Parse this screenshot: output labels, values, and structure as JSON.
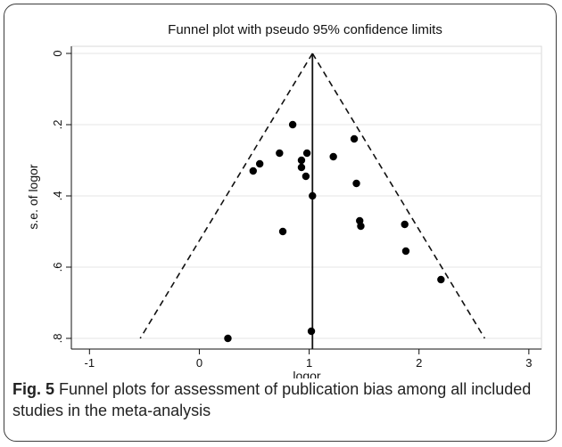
{
  "chart_data": {
    "type": "scatter",
    "title": "Funnel plot with pseudo 95% confidence limits",
    "xlabel": "logor",
    "ylabel": "s.e. of logor",
    "xlim": [
      -1.1,
      3.05
    ],
    "ylim": [
      0,
      0.8
    ],
    "y_reversed": true,
    "x_ticks": [
      "-1",
      "0",
      "1",
      "2",
      "3"
    ],
    "y_ticks": [
      "0",
      ".2",
      ".4",
      ".6",
      ".8"
    ],
    "grid": "horizontal",
    "pooled_estimate": 1.03,
    "series": [
      {
        "points": [
          {
            "x": 0.26,
            "y": 0.8
          },
          {
            "x": 1.02,
            "y": 0.78
          },
          {
            "x": 0.76,
            "y": 0.5
          },
          {
            "x": 0.85,
            "y": 0.2
          },
          {
            "x": 1.41,
            "y": 0.24
          },
          {
            "x": 0.73,
            "y": 0.28
          },
          {
            "x": 0.98,
            "y": 0.28
          },
          {
            "x": 0.93,
            "y": 0.3
          },
          {
            "x": 1.22,
            "y": 0.29
          },
          {
            "x": 0.55,
            "y": 0.31
          },
          {
            "x": 0.49,
            "y": 0.33
          },
          {
            "x": 0.93,
            "y": 0.32
          },
          {
            "x": 0.97,
            "y": 0.345
          },
          {
            "x": 1.43,
            "y": 0.365
          },
          {
            "x": 1.03,
            "y": 0.4
          },
          {
            "x": 1.46,
            "y": 0.47
          },
          {
            "x": 1.47,
            "y": 0.485
          },
          {
            "x": 1.87,
            "y": 0.48
          },
          {
            "x": 1.88,
            "y": 0.555
          },
          {
            "x": 2.2,
            "y": 0.635
          }
        ]
      }
    ]
  },
  "caption": {
    "label": "Fig. 5",
    "text": " Funnel plots for assessment of publication bias among all included studies in the meta-analysis"
  }
}
